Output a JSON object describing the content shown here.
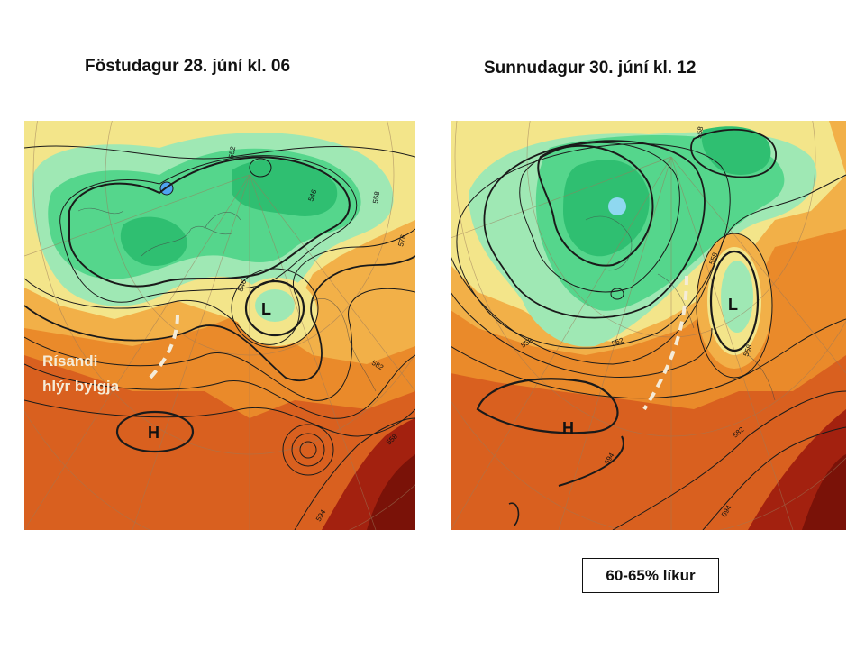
{
  "panels": [
    {
      "title": "Föstudagur 28. júní kl. 06",
      "high_label": "H",
      "low_label": "L",
      "annotation": [
        "Rísandi",
        "hlýr bylgja"
      ],
      "contour_labels": [
        "552",
        "546",
        "558",
        "576",
        "582",
        "546",
        "558",
        "594"
      ]
    },
    {
      "title": "Sunnudagur 30. júní kl. 12",
      "high_label": "H",
      "low_label": "L",
      "contour_labels": [
        "558",
        "558",
        "552",
        "558",
        "582",
        "594",
        "594",
        "558"
      ]
    }
  ],
  "probability_box": "60-65% líkur",
  "colors": {
    "dark_green": "#2fbf71",
    "green": "#55d68c",
    "light_green": "#9fe8b4",
    "yellow": "#f3e58a",
    "light_orange": "#f2b048",
    "orange": "#ea8a2a",
    "dark_orange": "#d9601f",
    "red_brown": "#a3210f",
    "dark_red": "#7a1208",
    "contour": "#1a1a1a",
    "annotation_dash": "#f5ecd8"
  }
}
